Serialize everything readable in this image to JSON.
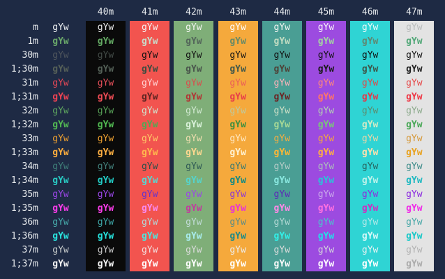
{
  "terminal": {
    "background": "#1e2a44",
    "label_color": "#e6e9ec",
    "header_color": "#e6e9ec",
    "cell_text": "gYw"
  },
  "columns": [
    {
      "code": "40m",
      "bg": "#0a0a0a"
    },
    {
      "code": "41m",
      "bg": "#f2544f"
    },
    {
      "code": "42m",
      "bg": "#7fae78"
    },
    {
      "code": "43m",
      "bg": "#f5a93c"
    },
    {
      "code": "44m",
      "bg": "#4a9e94"
    },
    {
      "code": "45m",
      "bg": "#9c4be0"
    },
    {
      "code": "46m",
      "bg": "#2fd4d4"
    },
    {
      "code": "47m",
      "bg": "#e3e3e3"
    }
  ],
  "rows": [
    {
      "label": "m",
      "bold": false,
      "cells": [
        "#eef0f2",
        "#ebebeb",
        "#f5f2f2",
        "#f3f5f1",
        "#ffffff",
        "#f2f5f2",
        "#f7f5f8",
        "#f0fafa",
        "#b9bcbc"
      ]
    },
    {
      "label": "1m",
      "bold": true,
      "cells": [
        "#6aa86a",
        "#63a963",
        "#c9dcc9",
        "#53655a",
        "#688a66",
        "#c2dcc2",
        "#a3d2a3",
        "#5f8872",
        "#52a878"
      ]
    },
    {
      "label": "30m",
      "bold": false,
      "cells": [
        "#4e555c",
        "#434b47",
        "#111111",
        "#111111",
        "#161616",
        "#101010",
        "#131313",
        "#101010",
        "#131313"
      ]
    },
    {
      "label": "1;30m",
      "bold": true,
      "cells": [
        "#566058",
        "#535f56",
        "#3c4c40",
        "#49544b",
        "#41584a",
        "#4d4338",
        "#1a1a1a",
        "#3c584a",
        "#222222"
      ]
    },
    {
      "label": "31m",
      "bold": false,
      "cells": [
        "#e64856",
        "#e7505a",
        "#ffd3d3",
        "#dc4b4b",
        "#eb5c58",
        "#ffb3ba",
        "#ff8a7a",
        "#df4848",
        "#e64a4a"
      ]
    },
    {
      "label": "1;31m",
      "bold": true,
      "cells": [
        "#ee4353",
        "#ef4c55",
        "#5d2422",
        "#b23434",
        "#e83d49",
        "#6b2423",
        "#ff7568",
        "#e63848",
        "#ee3846"
      ]
    },
    {
      "label": "32m",
      "bold": false,
      "cells": [
        "#5fa75f",
        "#57a057",
        "#cfe5cf",
        "#d2ead2",
        "#bccba2",
        "#cfe0c8",
        "#b2d2b2",
        "#5e8a6c",
        "#8caa8c"
      ]
    },
    {
      "label": "1;32m",
      "bold": true,
      "cells": [
        "#53b953",
        "#52bb52",
        "#52a852",
        "#daf2da",
        "#3f8f3f",
        "#a6d896",
        "#78c878",
        "#d2eac6",
        "#49a857"
      ]
    },
    {
      "label": "33m",
      "bold": false,
      "cells": [
        "#efa02f",
        "#f0a231",
        "#ffc968",
        "#f2dfb0",
        "#ffe9c4",
        "#f7af40",
        "#f7a93a",
        "#f2d5a4",
        "#d69838"
      ]
    },
    {
      "label": "1;33m",
      "bold": true,
      "cells": [
        "#ffae3d",
        "#ffb042",
        "#ffba4d",
        "#ffd890",
        "#fff2d2",
        "#ffb734",
        "#ffb042",
        "#ffe0ae",
        "#e8a21f"
      ]
    },
    {
      "label": "34m",
      "bold": false,
      "cells": [
        "#3f7f79",
        "#417f7a",
        "#2b4f4a",
        "#2f5a55",
        "#3a7a72",
        "#b6ccc8",
        "#aac0ba",
        "#27645e",
        "#3a8a88"
      ]
    },
    {
      "label": "1;34m",
      "bold": true,
      "cells": [
        "#29cbc4",
        "#22cbc4",
        "#57d8d2",
        "#55d4cc",
        "#118a85",
        "#8ae8e0",
        "#2ac4d8",
        "#bef2ea",
        "#1fb9c1"
      ]
    },
    {
      "label": "35m",
      "bold": false,
      "cells": [
        "#9a46e6",
        "#9a46e8",
        "#6633cc",
        "#9a46e8",
        "#8a35d8",
        "#5c28b8",
        "#c9a8ea",
        "#9128e0",
        "#8a28e0"
      ]
    },
    {
      "label": "1;35m",
      "bold": true,
      "cells": [
        "#fb3ceb",
        "#f93ce8",
        "#f98af0",
        "#c23a9e",
        "#e832d8",
        "#ff8ae8",
        "#ff70e0",
        "#d22ac2",
        "#f02ae8"
      ]
    },
    {
      "label": "36m",
      "bold": false,
      "cells": [
        "#47abab",
        "#3da5a5",
        "#b2d8d8",
        "#c2dcd8",
        "#5c8c86",
        "#b2d8d4",
        "#4ac4cc",
        "#b2e8e8",
        "#49a8a8"
      ]
    },
    {
      "label": "1;36m",
      "bold": true,
      "cells": [
        "#2ae5e0",
        "#26e2dc",
        "#4ae8e0",
        "#a8ecec",
        "#1e8a88",
        "#32f0e8",
        "#22e0e8",
        "#d6f8f8",
        "#1ac8c8"
      ]
    },
    {
      "label": "37m",
      "bold": false,
      "cells": [
        "#c9cdcd",
        "#c9c9c9",
        "#f2dede",
        "#dcdcdc",
        "#ececec",
        "#dcdcdc",
        "#d4d4dc",
        "#eaf2f2",
        "#b2b2b2"
      ]
    },
    {
      "label": "1;37m",
      "bold": true,
      "cells": [
        "#f4f4f4",
        "#f7f7f7",
        "#ffffff",
        "#ffffff",
        "#ffffff",
        "#fafafa",
        "#ffffff",
        "#ffffff",
        "#ababab"
      ]
    }
  ]
}
